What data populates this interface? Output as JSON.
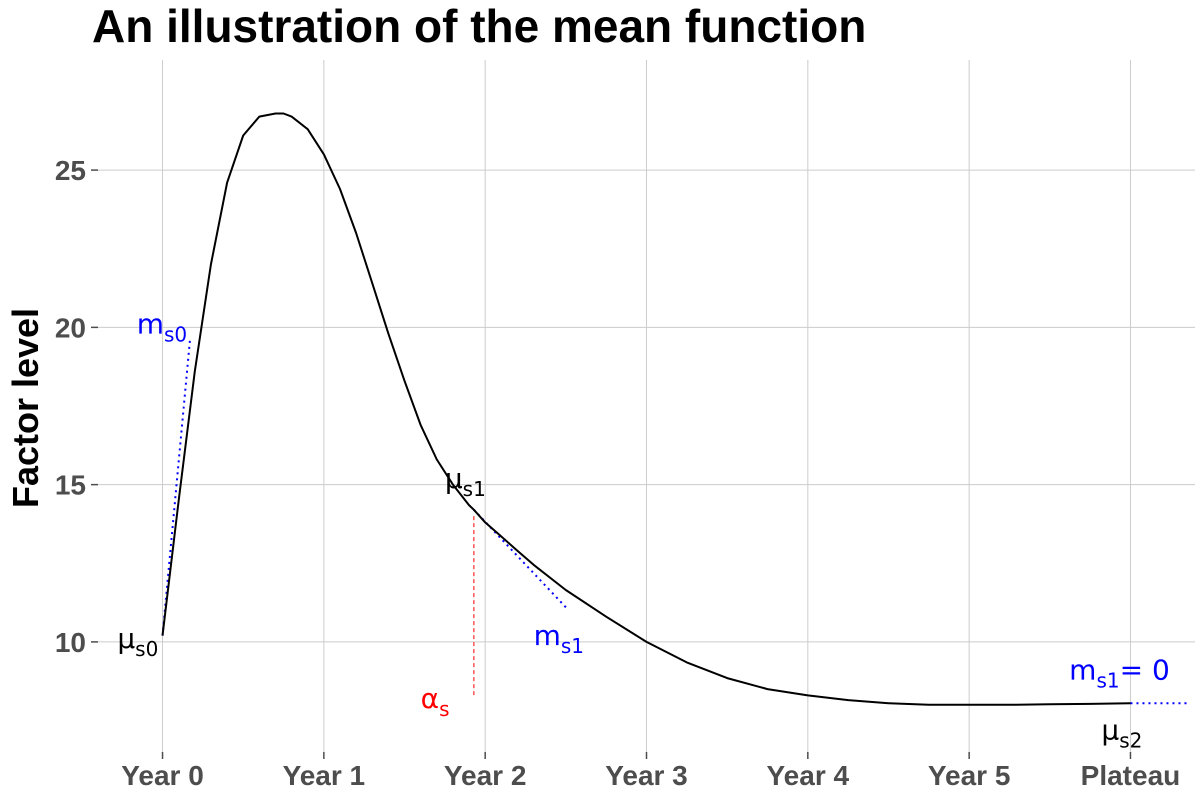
{
  "chart_data": {
    "type": "line",
    "title": "An illustration of the mean function",
    "xlabel": "",
    "ylabel": "Factor level",
    "x_ticks": [
      {
        "x": 0,
        "label": "Year 0"
      },
      {
        "x": 1,
        "label": "Year 1"
      },
      {
        "x": 2,
        "label": "Year 2"
      },
      {
        "x": 3,
        "label": "Year 3"
      },
      {
        "x": 4,
        "label": "Year 4"
      },
      {
        "x": 5,
        "label": "Year 5"
      },
      {
        "x": 6,
        "label": "Plateau"
      }
    ],
    "y_ticks": [
      10,
      15,
      20,
      25
    ],
    "xlim": [
      -0.4,
      6.4
    ],
    "ylim": [
      6.5,
      28.5
    ],
    "grid": true,
    "series": [
      {
        "color": "#000000",
        "x": [
          0.0,
          0.1,
          0.2,
          0.3,
          0.4,
          0.5,
          0.6,
          0.7,
          0.75,
          0.8,
          0.9,
          1.0,
          1.1,
          1.2,
          1.3,
          1.4,
          1.5,
          1.6,
          1.7,
          1.8,
          1.9,
          1.93,
          2.0,
          2.1,
          2.2,
          2.3,
          2.5,
          2.75,
          3.0,
          3.25,
          3.5,
          3.75,
          4.0,
          4.25,
          4.5,
          4.75,
          5.0,
          5.25,
          5.5,
          5.75,
          6.0
        ],
        "y": [
          10.2,
          14.5,
          18.6,
          22.0,
          24.6,
          26.1,
          26.7,
          26.8,
          26.8,
          26.7,
          26.3,
          25.5,
          24.4,
          23.0,
          21.4,
          19.8,
          18.3,
          16.9,
          15.8,
          15.0,
          14.35,
          14.2,
          13.8,
          13.35,
          12.9,
          12.45,
          11.65,
          10.8,
          10.0,
          9.35,
          8.85,
          8.5,
          8.3,
          8.15,
          8.05,
          8.0,
          8.0,
          8.0,
          8.02,
          8.03,
          8.05
        ]
      }
    ],
    "annotations": {
      "tangent_lines": [
        {
          "color": "#0000ff",
          "style": "dotted",
          "x": [
            0.0,
            0.17
          ],
          "y": [
            10.2,
            19.6
          ]
        },
        {
          "color": "#0000ff",
          "style": "dotted",
          "x": [
            1.93,
            2.5
          ],
          "y": [
            14.2,
            11.1
          ]
        },
        {
          "color": "#0000ff",
          "style": "dotted",
          "x": [
            6.0,
            6.35
          ],
          "y": [
            8.05,
            8.05
          ]
        }
      ],
      "change_point": {
        "color": "#ff0000",
        "style": "dashed",
        "x": 1.93,
        "y_from": 14.0,
        "y_to": 8.3
      },
      "labels": [
        {
          "main": "μ",
          "sub": "s0",
          "suffix": "",
          "color": "#000000",
          "x": -0.28,
          "y": 9.8
        },
        {
          "main": "m",
          "sub": "s0",
          "suffix": "",
          "color": "#0000ff",
          "x": -0.16,
          "y": 19.8
        },
        {
          "main": "μ",
          "sub": "s1",
          "suffix": "",
          "color": "#000000",
          "x": 1.75,
          "y": 14.9
        },
        {
          "main": "α",
          "sub": "s",
          "suffix": "",
          "color": "#ff0000",
          "x": 1.6,
          "y": 7.9
        },
        {
          "main": "m",
          "sub": "s1",
          "suffix": "",
          "color": "#0000ff",
          "x": 2.3,
          "y": 9.9
        },
        {
          "main": "m",
          "sub": "s1",
          "suffix": "= 0",
          "color": "#0000ff",
          "x": 5.62,
          "y": 8.8
        },
        {
          "main": "μ",
          "sub": "s2",
          "suffix": "",
          "color": "#000000",
          "x": 5.82,
          "y": 6.9
        }
      ]
    }
  }
}
